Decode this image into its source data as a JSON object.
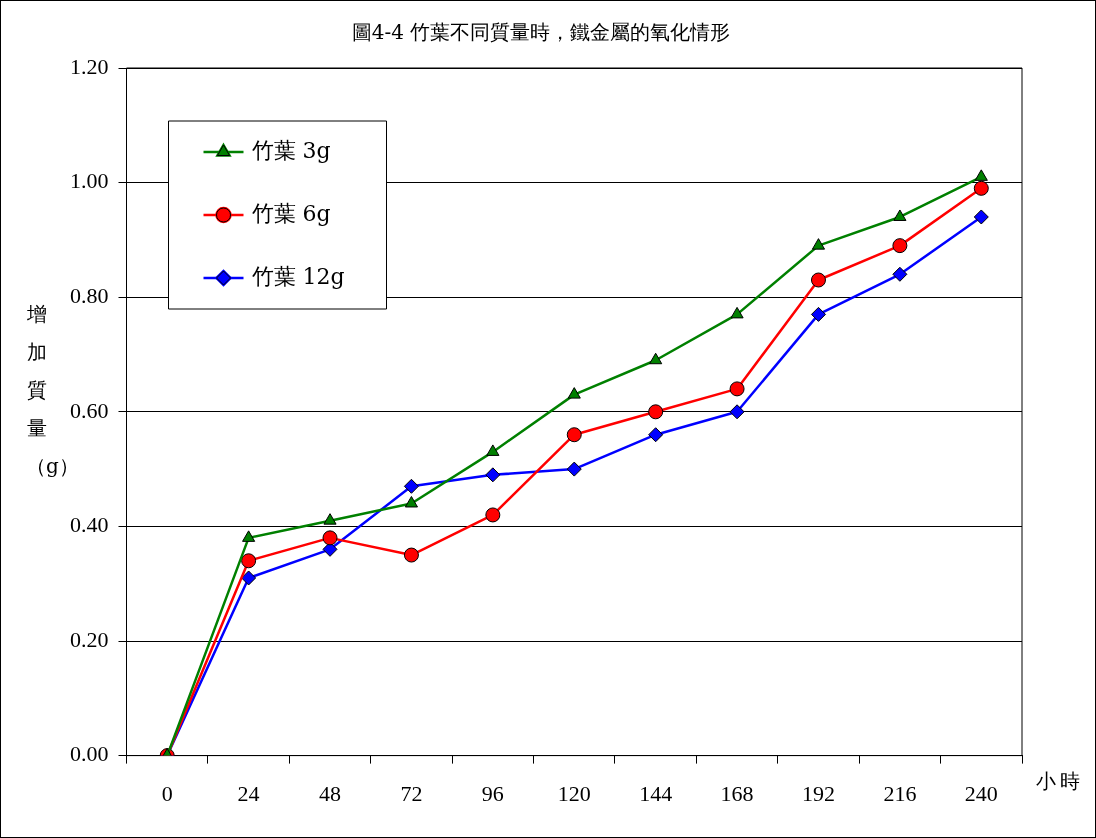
{
  "chart_data": {
    "type": "line",
    "title": "圖4-4 竹葉不同質量時，鐵金屬的氧化情形",
    "xlabel": "小時",
    "ylabel": "增加質量（g）",
    "categories": [
      "0",
      "24",
      "48",
      "72",
      "96",
      "120",
      "144",
      "168",
      "192",
      "216",
      "240"
    ],
    "ylim": [
      0,
      1.2
    ],
    "yticks": [
      {
        "value": 0,
        "label": "0.00"
      },
      {
        "value": 0.2,
        "label": "0.20"
      },
      {
        "value": 0.4,
        "label": "0.40"
      },
      {
        "value": 0.6,
        "label": "0.60"
      },
      {
        "value": 0.8,
        "label": "0.80"
      },
      {
        "value": 1,
        "label": "1.00"
      },
      {
        "value": 1.2,
        "label": "1.20"
      }
    ],
    "grid": "y",
    "legend": "top left",
    "line_style": "solid",
    "series": [
      {
        "name": "竹葉 3g",
        "color": "#008000",
        "marker": "triangle",
        "values": [
          0,
          0.38,
          0.41,
          0.44,
          0.53,
          0.63,
          0.69,
          0.77,
          0.89,
          0.94,
          1.01
        ]
      },
      {
        "name": "竹葉 6g",
        "color": "#ff0000",
        "marker": "circle",
        "values": [
          0,
          0.34,
          0.38,
          0.35,
          0.42,
          0.56,
          0.6,
          0.64,
          0.83,
          0.89,
          0.99
        ]
      },
      {
        "name": "竹葉 12g",
        "color": "#0000ff",
        "marker": "diamond",
        "values": [
          0,
          0.31,
          0.36,
          0.47,
          0.49,
          0.5,
          0.56,
          0.6,
          0.77,
          0.84,
          0.94
        ]
      }
    ]
  }
}
